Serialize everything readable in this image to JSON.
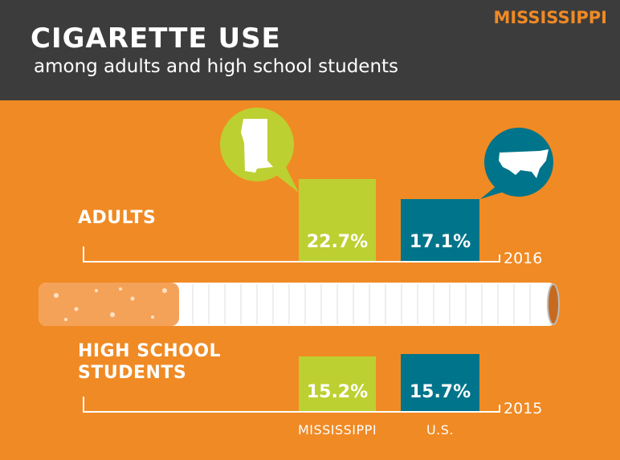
{
  "state_label": "MISSISSIPPI",
  "chart_data": {
    "type": "bar",
    "title": "CIGARETTE USE",
    "subtitle": "among adults and high school students",
    "categories": [
      "MISSISSIPPI",
      "U.S."
    ],
    "colors": [
      "#bdd031",
      "#00748a"
    ],
    "series": [
      {
        "name": "ADULTS",
        "period": "2016",
        "values": [
          22.7,
          17.1
        ],
        "value_labels": [
          "22.7%",
          "17.1%"
        ]
      },
      {
        "name": "HIGH SCHOOL STUDENTS",
        "period": "2015",
        "values": [
          15.2,
          15.7
        ],
        "value_labels": [
          "15.2%",
          "15.7%"
        ]
      }
    ]
  }
}
